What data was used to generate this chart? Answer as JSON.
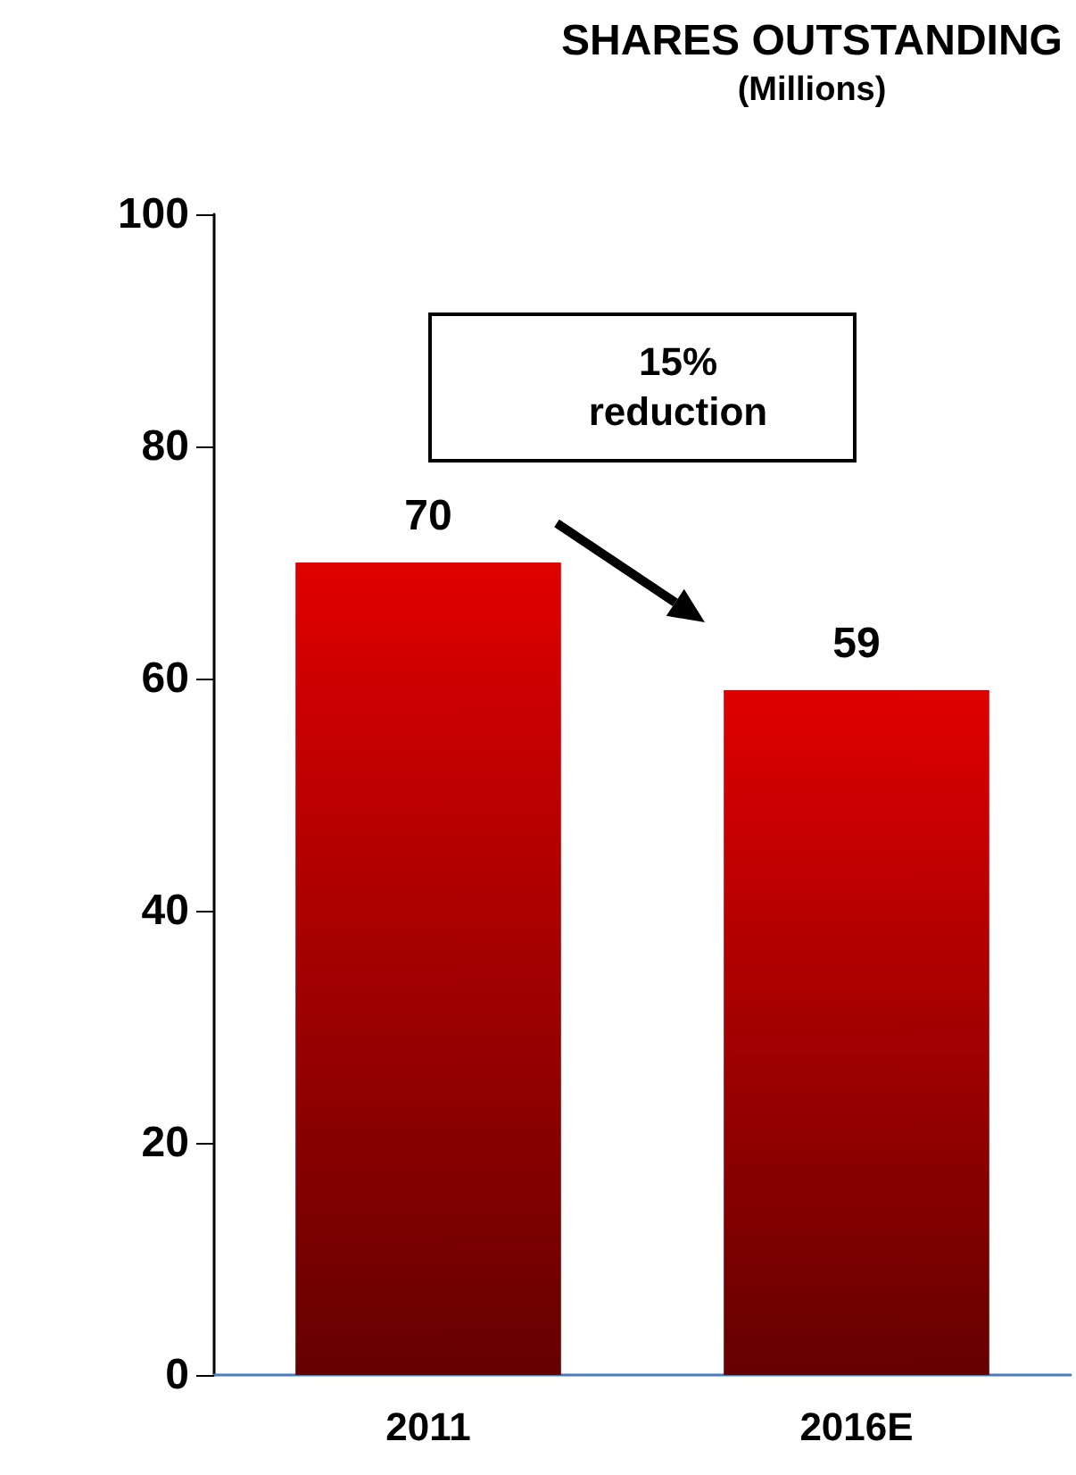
{
  "chart_data": {
    "type": "bar",
    "title": "SHARES OUTSTANDING",
    "subtitle": "(Millions)",
    "categories": [
      "2011",
      "2016E"
    ],
    "values": [
      70,
      59
    ],
    "color": "#e00000",
    "ylim": [
      0,
      100
    ],
    "yticks": [
      0,
      20,
      40,
      60,
      80,
      100
    ],
    "grid": false,
    "data_labels": true,
    "annotations": [
      "15%\nreduction"
    ]
  }
}
